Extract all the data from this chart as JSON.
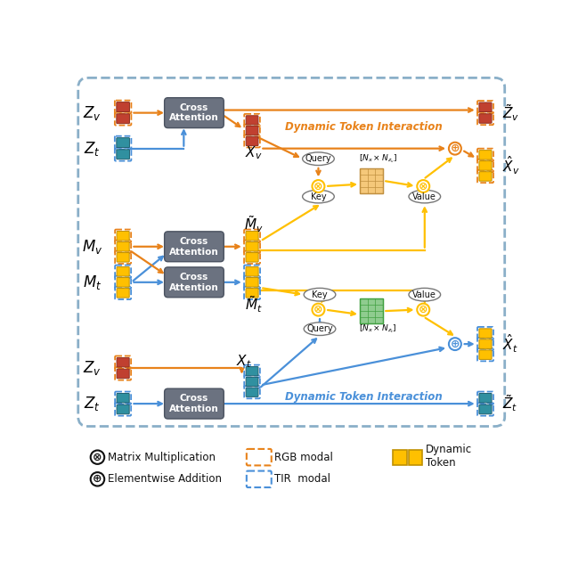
{
  "orange": "#E8821A",
  "blue": "#4A90D9",
  "yellow": "#FFC000",
  "gray_box": "#6B7280",
  "white": "#ffffff",
  "black": "#111111",
  "red_car": "#C04030",
  "teal_car": "#3090A0",
  "legend": {
    "matrix_mult": "Matrix Multiplication",
    "elem_add": "Elementwise Addition",
    "rgb_modal": "RGB modal",
    "tir_modal": "TIR  modal",
    "dynamic_token": "Dynamic\nToken"
  },
  "labels": {
    "Zv_top": "$Z_v$",
    "Zt_top": "$Z_t$",
    "Xv": "$X_v$",
    "Mv": "$M_v$",
    "Mt": "$M_t$",
    "Mv_tilde": "$\\tilde{M}_v$",
    "Mt_tilde": "$\\tilde{M}_t$",
    "Zv_bot": "$Z_v$",
    "Zt_bot": "$Z_t$",
    "Xt": "$X_t$",
    "Ztv": "$\\tilde{Z}_v$",
    "Xvhat": "$\\hat{X}_v$",
    "Xthat": "$\\hat{X}_t$",
    "Ztt": "$\\tilde{Z}_t$",
    "dti_top": "Dynamic Token Interaction",
    "dti_bot": "Dynamic Token Interaction",
    "nxnzv": "$[N_x \\times N_{z_v}]$",
    "nxnzt": "$[N_x \\times N_{z_t}]$"
  }
}
